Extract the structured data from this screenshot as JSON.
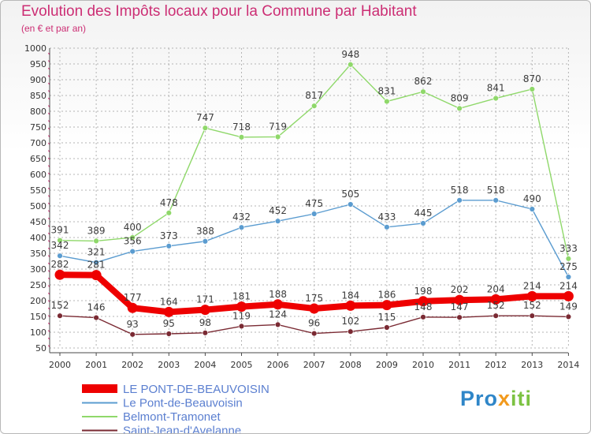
{
  "header": {
    "title": "Evolution des Impôts locaux pour la Commune par Habitant",
    "subtitle": "(en € et par an)"
  },
  "brand": {
    "part1": "Pro",
    "part2": "x",
    "part3": "iti"
  },
  "colors": {
    "title": "#cc2e74",
    "grid": "#b4b4b4",
    "axis": "#4a4a4a"
  },
  "chart_data": {
    "type": "line",
    "title": "Evolution des Impôts locaux pour la Commune par Habitant",
    "subtitle": "(en € et par an)",
    "xlabel": "",
    "ylabel": "",
    "ylim": [
      50,
      1000
    ],
    "yticks": [
      50,
      100,
      150,
      200,
      250,
      300,
      350,
      400,
      450,
      500,
      550,
      600,
      650,
      700,
      750,
      800,
      850,
      900,
      950,
      1000
    ],
    "categories": [
      "2000",
      "2001",
      "2002",
      "2003",
      "2004",
      "2005",
      "2006",
      "2007",
      "2008",
      "2009",
      "2010",
      "2011",
      "2012",
      "2013",
      "2014"
    ],
    "grid": true,
    "legend": "bottom-left",
    "series": [
      {
        "name": "Belmont-Tramonet",
        "color": "#8fd86a",
        "thick": false,
        "values": [
          391,
          389,
          400,
          478,
          747,
          718,
          719,
          817,
          948,
          831,
          862,
          809,
          841,
          870,
          333
        ]
      },
      {
        "name": "Le Pont-de-Beauvoisin",
        "color": "#5b9cd0",
        "thick": false,
        "values": [
          342,
          321,
          356,
          373,
          388,
          432,
          452,
          475,
          505,
          433,
          445,
          518,
          518,
          490,
          275
        ]
      },
      {
        "name": "Saint-Jean-d'Avelanne",
        "color": "#7a2a33",
        "thick": false,
        "values": [
          152,
          146,
          93,
          95,
          98,
          119,
          124,
          96,
          102,
          115,
          148,
          147,
          152,
          152,
          149
        ]
      },
      {
        "name": "LE PONT-DE-BEAUVOISIN",
        "color": "#ee0000",
        "thick": true,
        "values": [
          282,
          281,
          177,
          164,
          171,
          181,
          188,
          175,
          184,
          186,
          198,
          202,
          204,
          214,
          214
        ]
      }
    ],
    "legend_order": [
      "LE PONT-DE-BEAUVOISIN",
      "Le Pont-de-Beauvoisin",
      "Belmont-Tramonet",
      "Saint-Jean-d'Avelanne"
    ]
  }
}
